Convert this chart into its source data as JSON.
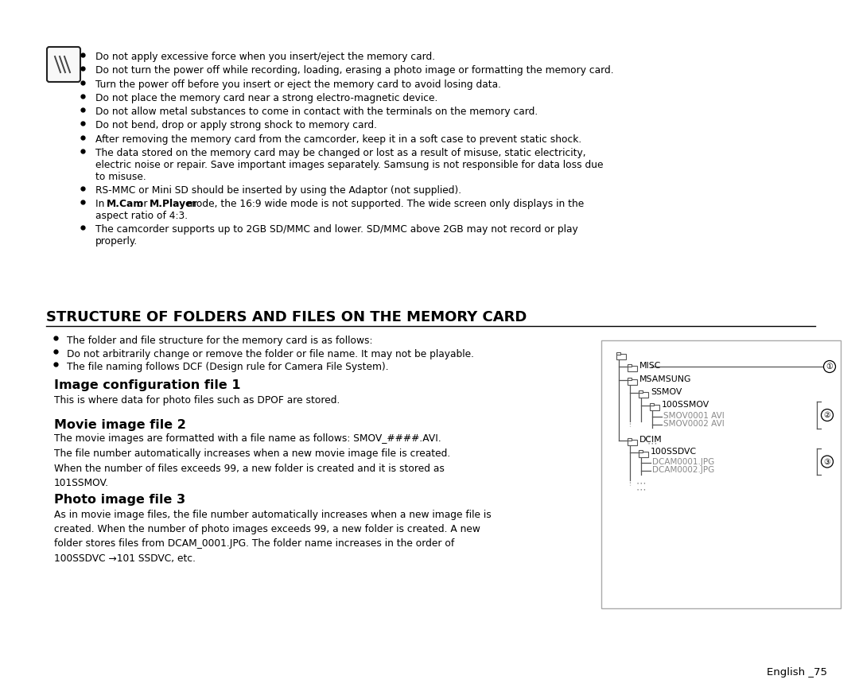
{
  "bg_color": "#ffffff",
  "title": "STRUCTURE OF FOLDERS AND FILES ON THE MEMORY CARD",
  "footer_text": "English _75",
  "top_bullets": [
    "Do not apply excessive force when you insert/eject the memory card.",
    "Do not turn the power off while recording, loading, erasing a photo image or formatting the memory card.",
    "Turn the power off before you insert or eject the memory card to avoid losing data.",
    "Do not place the memory card near a strong electro-magnetic device.",
    "Do not allow metal substances to come in contact with the terminals on the memory card.",
    "Do not bend, drop or apply strong shock to memory card.",
    "After removing the memory card from the camcorder, keep it in a soft case to prevent static shock.",
    "The data stored on the memory card may be changed or lost as a result of misuse, static electricity,\nelectric noise or repair. Save important images separately. Samsung is not responsible for data loss due\nto misuse.",
    "RS-MMC or Mini SD should be inserted by using the Adaptor (not supplied).",
    "In M.Cam or M.Player mode, the 16:9 wide mode is not supported. The wide screen only displays in the\naspect ratio of 4:3.",
    "The camcorder supports up to 2GB SD/MMC and lower. SD/MMC above 2GB may not record or play\nproperly."
  ],
  "top_bullets_bold_parts": [
    [],
    [],
    [],
    [],
    [],
    [],
    [],
    [],
    [],
    [
      "M.Cam",
      "M.Player"
    ],
    []
  ],
  "mid_bullets": [
    "The folder and file structure for the memory card is as follows:",
    "Do not arbitrarily change or remove the folder or file name. It may not be playable.",
    "The file naming follows DCF (Design rule for Camera File System)."
  ],
  "s1_title": "Image configuration file 1",
  "s1_body": "This is where data for photo files such as DPOF are stored.",
  "s2_title": "Movie image file 2",
  "s2_body": "The movie images are formatted with a file name as follows: SMOV_####.AVI.\nThe file number automatically increases when a new movie image file is created.\nWhen the number of files exceeds 99, a new folder is created and it is stored as\n101SSMOV.",
  "s3_title": "Photo image file 3",
  "s3_body": "As in movie image files, the file number automatically increases when a new image file is\ncreated. When the number of photo images exceeds 99, a new folder is created. A new\nfolder stores files from DCAM_0001.JPG. The folder name increases in the order of\n100SSDVC →101 SSDVC, etc."
}
